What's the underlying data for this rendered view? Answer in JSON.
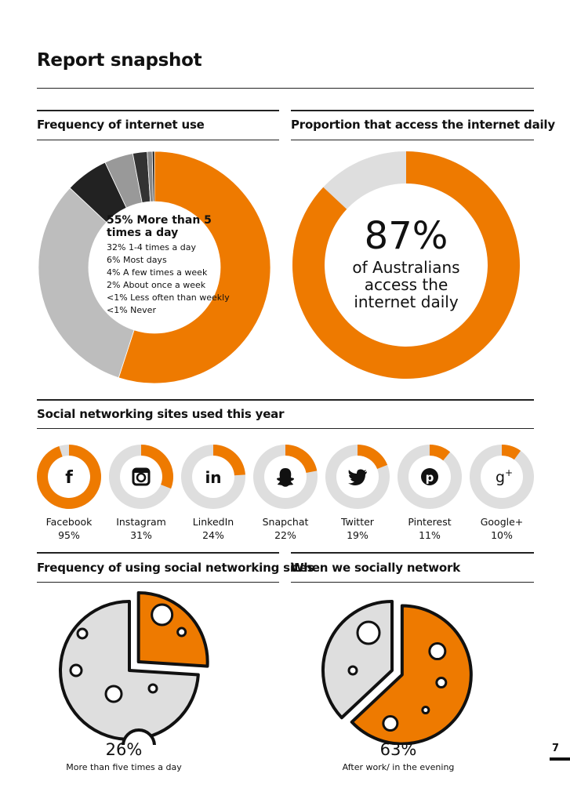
{
  "page_title": "Report snapshot",
  "colors": {
    "accent": "#ee7a00",
    "light_grey": "#bdbdbd",
    "track_grey": "#dedede",
    "dark": "#222222",
    "mid_grey": "#999999"
  },
  "freq_internet": {
    "title": "Frequency of internet use",
    "main": "55% More than 5 times a day",
    "items": [
      "32% 1-4 times a day",
      "6% Most days",
      "4% A few times a week",
      "2% About once a week",
      "<1% Less often than weekly",
      "<1% Never"
    ],
    "segments": [
      {
        "label": "More than 5 times a day",
        "percent": 55,
        "color": "#ee7a00"
      },
      {
        "label": "1-4 times a day",
        "percent": 32,
        "color": "#bdbdbd"
      },
      {
        "label": "Most days",
        "percent": 6,
        "color": "#222222"
      },
      {
        "label": "A few times a week",
        "percent": 4,
        "color": "#999999"
      },
      {
        "label": "About once a week",
        "percent": 2,
        "color": "#333333"
      },
      {
        "label": "Less often than weekly",
        "percent": 0.7,
        "color": "#888888"
      },
      {
        "label": "Never",
        "percent": 0.3,
        "color": "#111111"
      }
    ]
  },
  "daily_access": {
    "title": "Proportion that access the internet daily",
    "percent_value": 87,
    "percent_text": "87%",
    "line1": "of Australians",
    "line2": "access the",
    "line3": "internet daily"
  },
  "social_sites": {
    "title": "Social networking sites used this year",
    "items": [
      {
        "name": "Facebook",
        "pct_text": "95%",
        "value": 95,
        "icon": "facebook-icon",
        "glyph": "f"
      },
      {
        "name": "Instagram",
        "pct_text": "31%",
        "value": 31,
        "icon": "instagram-icon",
        "glyph": ""
      },
      {
        "name": "LinkedIn",
        "pct_text": "24%",
        "value": 24,
        "icon": "linkedin-icon",
        "glyph": "in"
      },
      {
        "name": "Snapchat",
        "pct_text": "22%",
        "value": 22,
        "icon": "snapchat-icon",
        "glyph": ""
      },
      {
        "name": "Twitter",
        "pct_text": "19%",
        "value": 19,
        "icon": "twitter-icon",
        "glyph": ""
      },
      {
        "name": "Pinterest",
        "pct_text": "11%",
        "value": 11,
        "icon": "pinterest-icon",
        "glyph": "p"
      },
      {
        "name": "Google+",
        "pct_text": "10%",
        "value": 10,
        "icon": "googleplus-icon",
        "glyph": "g+"
      }
    ]
  },
  "freq_social": {
    "title": "Frequency of using social networking sites",
    "percent_text": "26%",
    "percent_value": 26,
    "caption": "More than five times a day"
  },
  "when_social": {
    "title": "When we socially network",
    "percent_text": "63%",
    "percent_value": 63,
    "caption": "After work/ in the evening"
  },
  "page_number": "7"
}
